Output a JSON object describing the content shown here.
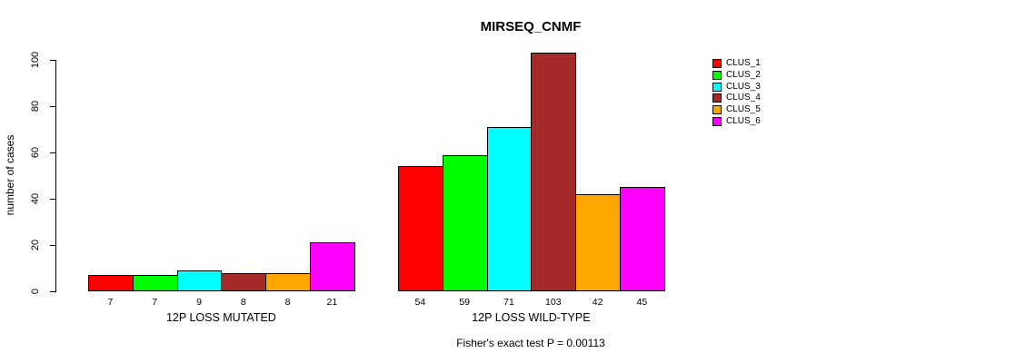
{
  "chart_data": {
    "type": "bar",
    "title": "MIRSEQ_CNMF",
    "ylabel": "number of cases",
    "subtitle": "Fisher's exact test P = 0.00113",
    "ylim": [
      0,
      100
    ],
    "yticks": [
      0,
      20,
      40,
      60,
      80,
      100
    ],
    "grid": false,
    "legend_position": "right",
    "clusters": [
      {
        "label": "CLUS_1",
        "color": "#FF0000"
      },
      {
        "label": "CLUS_2",
        "color": "#00FF00"
      },
      {
        "label": "CLUS_3",
        "color": "#00FFFF"
      },
      {
        "label": "CLUS_4",
        "color": "#A52A2A"
      },
      {
        "label": "CLUS_5",
        "color": "#FFA500"
      },
      {
        "label": "CLUS_6",
        "color": "#FF00FF"
      }
    ],
    "groups": [
      {
        "label": "12P LOSS MUTATED",
        "values": [
          7,
          7,
          9,
          8,
          8,
          21
        ]
      },
      {
        "label": "12P LOSS WILD-TYPE",
        "values": [
          54,
          59,
          71,
          103,
          42,
          45
        ]
      }
    ]
  }
}
